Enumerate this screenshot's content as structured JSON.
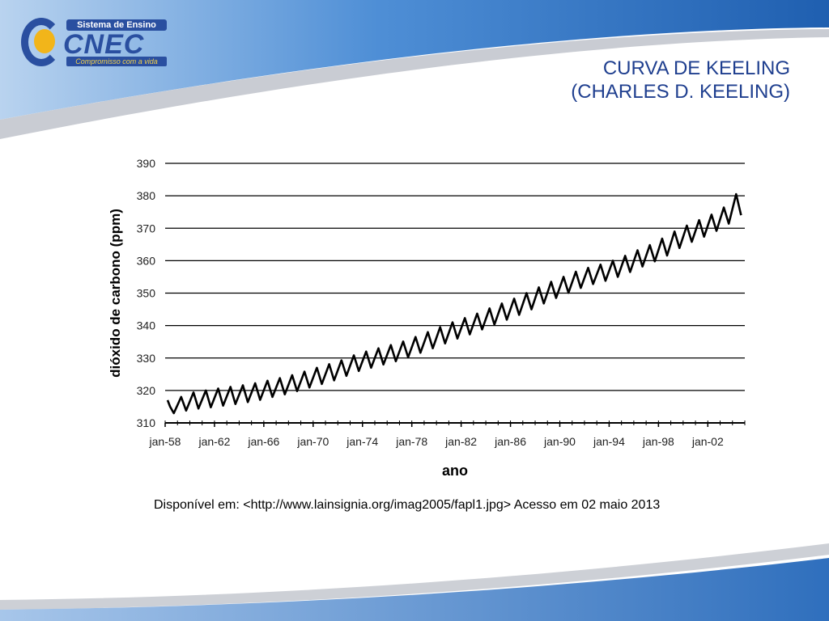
{
  "header": {
    "logo": {
      "top_text": "Sistema de Ensino",
      "main_text": "CNEC",
      "tagline": "Compromisso com a vida"
    },
    "title_line1": "CURVA DE KEELING",
    "title_line2": "(CHARLES D. KEELING)"
  },
  "colors": {
    "title": "#1f3f8f",
    "band_blue": "#2f6fbd",
    "band_gray": "#c9ccd3",
    "curve": "#000000"
  },
  "chart_data": {
    "type": "line",
    "title": "",
    "xlabel": "ano",
    "ylabel": "dióxido de carbono (ppm)",
    "ylim": [
      310,
      390
    ],
    "yticks": [
      310,
      320,
      330,
      340,
      350,
      360,
      370,
      380,
      390
    ],
    "xlim": [
      1958.0,
      2005.0
    ],
    "xticks": [
      {
        "value": 1958,
        "label": "jan-58"
      },
      {
        "value": 1962,
        "label": "jan-62"
      },
      {
        "value": 1966,
        "label": "jan-66"
      },
      {
        "value": 1970,
        "label": "jan-70"
      },
      {
        "value": 1974,
        "label": "jan-74"
      },
      {
        "value": 1978,
        "label": "jan-78"
      },
      {
        "value": 1982,
        "label": "jan-82"
      },
      {
        "value": 1986,
        "label": "jan-86"
      },
      {
        "value": 1990,
        "label": "jan-90"
      },
      {
        "value": 1994,
        "label": "jan-94"
      },
      {
        "value": 1998,
        "label": "jan-98"
      },
      {
        "value": 2002,
        "label": "jan-02"
      }
    ],
    "grid": true,
    "series": [
      {
        "x": [
          1958.2,
          1958.4,
          1958.7,
          1959.3,
          1959.7,
          1960.3,
          1960.7,
          1961.3,
          1961.7,
          1962.3,
          1962.7,
          1963.3,
          1963.7,
          1964.3,
          1964.7,
          1965.3,
          1965.7,
          1966.3,
          1966.7,
          1967.3,
          1967.7,
          1968.3,
          1968.7,
          1969.3,
          1969.7,
          1970.3,
          1970.7,
          1971.3,
          1971.7,
          1972.3,
          1972.7,
          1973.3,
          1973.7,
          1974.3,
          1974.7,
          1975.3,
          1975.7,
          1976.3,
          1976.7,
          1977.3,
          1977.7,
          1978.3,
          1978.7,
          1979.3,
          1979.7,
          1980.3,
          1980.7,
          1981.3,
          1981.7,
          1982.3,
          1982.7,
          1983.3,
          1983.7,
          1984.3,
          1984.7,
          1985.3,
          1985.7,
          1986.3,
          1986.7,
          1987.3,
          1987.7,
          1988.3,
          1988.7,
          1989.3,
          1989.7,
          1990.3,
          1990.7,
          1991.3,
          1991.7,
          1992.3,
          1992.7,
          1993.3,
          1993.7,
          1994.3,
          1994.7,
          1995.3,
          1995.7,
          1996.3,
          1996.7,
          1997.3,
          1997.7,
          1998.3,
          1998.7,
          1999.3,
          1999.7,
          2000.3,
          2000.7,
          2001.3,
          2001.7,
          2002.3,
          2002.7,
          2003.3,
          2003.7,
          2004.3,
          2004.7
        ],
        "y": [
          317.0,
          315.0,
          313.0,
          318.0,
          313.8,
          319.4,
          314.4,
          320.0,
          314.8,
          320.6,
          315.3,
          321.1,
          315.8,
          321.6,
          316.4,
          322.2,
          317.1,
          323.0,
          318.0,
          323.8,
          318.8,
          324.7,
          319.8,
          325.8,
          320.9,
          327.0,
          322.0,
          328.1,
          323.1,
          329.3,
          324.5,
          330.8,
          326.0,
          332.0,
          327.0,
          333.0,
          328.0,
          334.0,
          329.0,
          335.1,
          330.2,
          336.5,
          331.6,
          338.0,
          333.0,
          339.5,
          334.5,
          341.0,
          336.0,
          342.3,
          337.3,
          343.7,
          338.8,
          345.3,
          340.3,
          346.8,
          341.8,
          348.3,
          343.3,
          350.0,
          345.0,
          351.8,
          346.8,
          353.5,
          348.5,
          355.0,
          350.1,
          356.6,
          351.6,
          357.8,
          352.8,
          358.8,
          353.8,
          360.0,
          355.0,
          361.5,
          356.5,
          363.2,
          358.2,
          364.8,
          359.8,
          366.8,
          361.6,
          369.0,
          363.9,
          370.8,
          365.8,
          372.5,
          367.4,
          374.2,
          369.2,
          376.4,
          371.4,
          380.5,
          374.0
        ]
      }
    ]
  },
  "caption": "Disponível em: <http://www.lainsignia.org/imag2005/fapl1.jpg> Acesso em 02 maio 2013"
}
